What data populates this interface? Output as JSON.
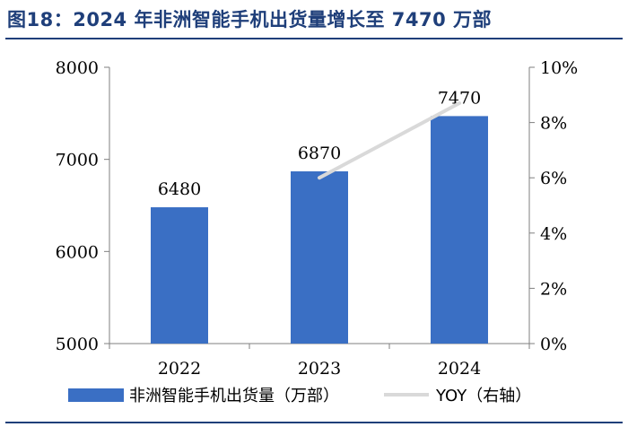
{
  "title": "图18：2024 年非洲智能手机出货量增长至 7470 万部",
  "colors": {
    "bar": "#3a6fc4",
    "line": "#d9d9d9",
    "axis": "#7f7f7f",
    "title": "#1f3f7a"
  },
  "chart_data": {
    "type": "bar",
    "categories": [
      "2022",
      "2023",
      "2024"
    ],
    "series": [
      {
        "name": "非洲智能手机出货量（万部）",
        "type": "bar",
        "axis": "left",
        "values": [
          6480,
          6870,
          7470
        ],
        "labels": [
          "6480",
          "6870",
          "7470"
        ]
      },
      {
        "name": "YOY（右轴）",
        "type": "line",
        "axis": "right",
        "values": [
          null,
          6.0,
          8.7
        ]
      }
    ],
    "ylim": [
      5000,
      8000
    ],
    "yticks": [
      "5000",
      "6000",
      "7000",
      "8000"
    ],
    "y2lim": [
      0,
      10
    ],
    "y2ticks": [
      "0%",
      "2%",
      "4%",
      "6%",
      "8%",
      "10%"
    ],
    "grid": false,
    "legend": "bottom"
  }
}
